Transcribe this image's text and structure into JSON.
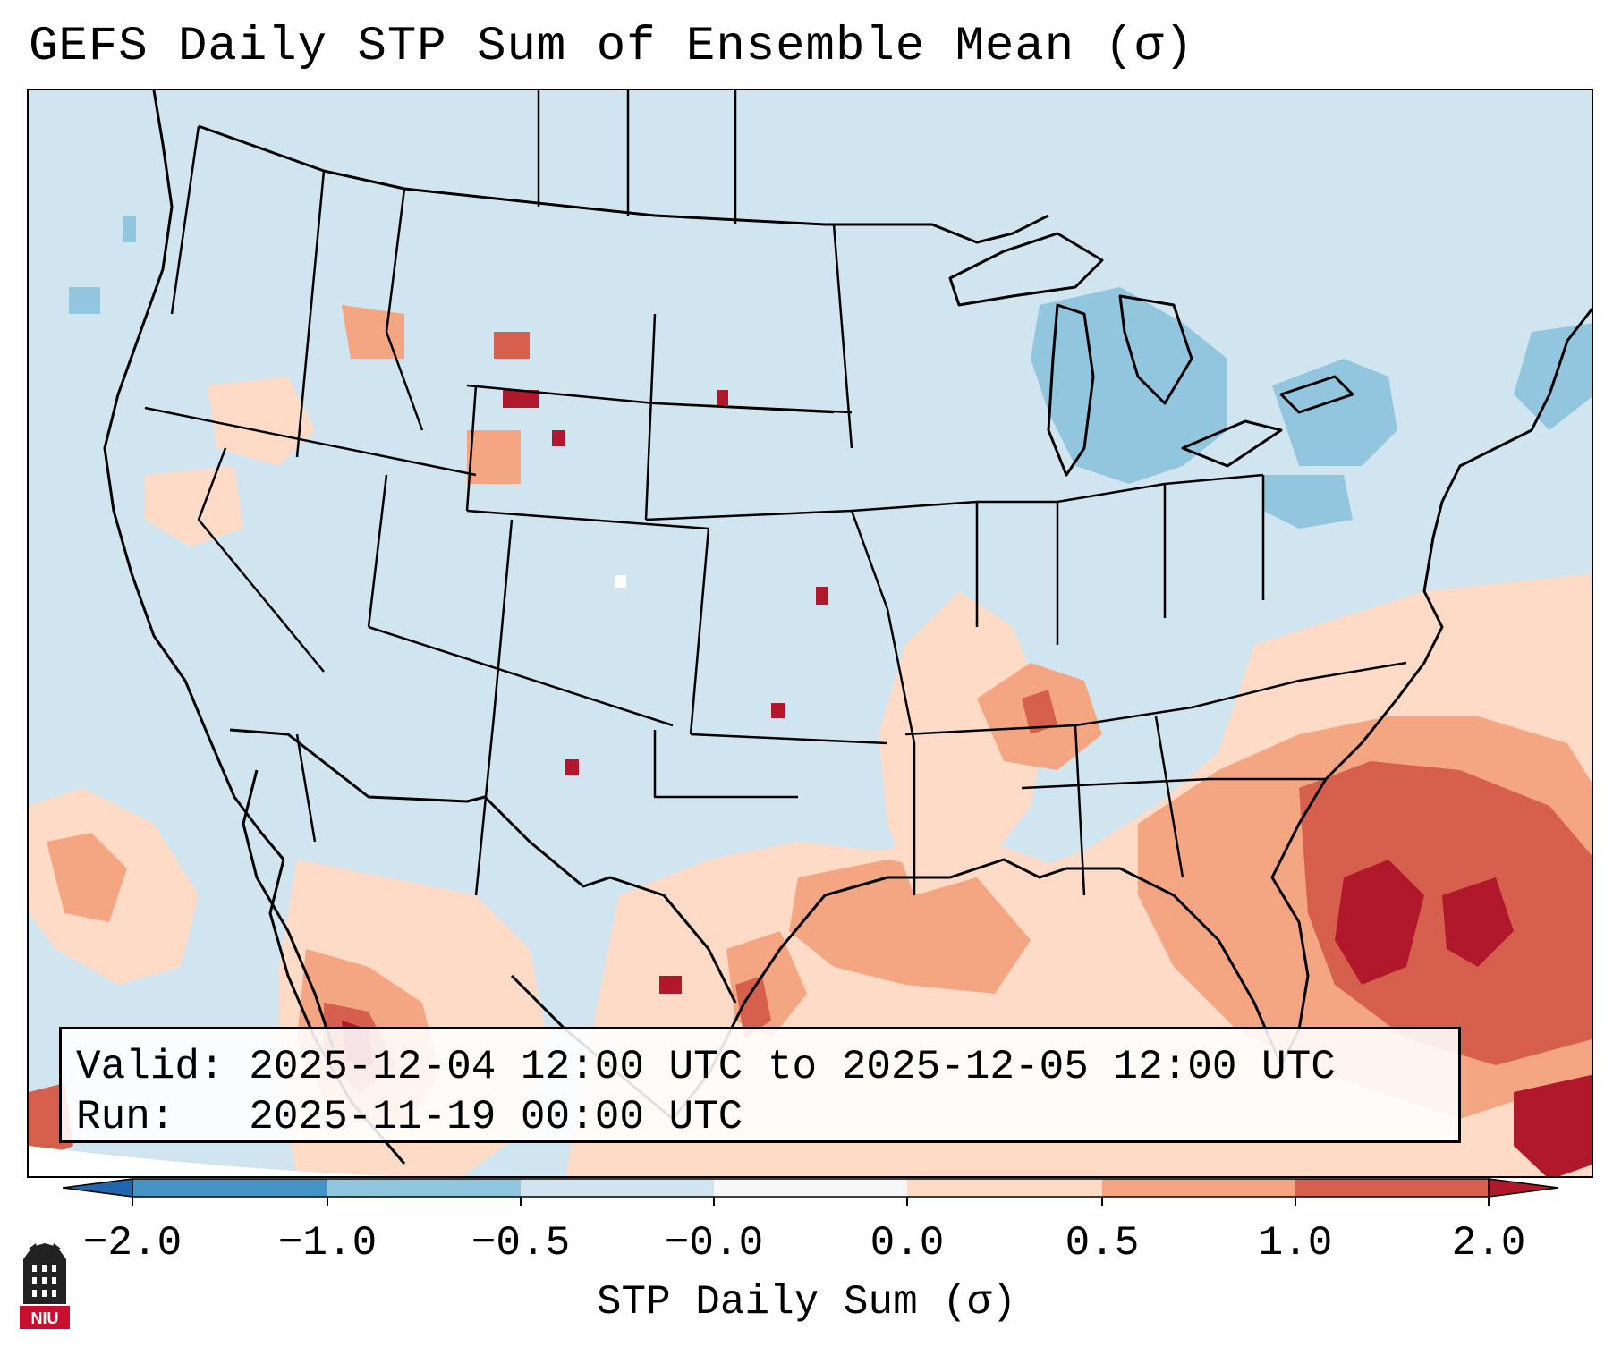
{
  "title": "GEFS Daily STP Sum of Ensemble Mean (σ)",
  "info": {
    "valid_label": "Valid:",
    "valid_value": "2025-12-04 12:00 UTC to 2025-12-05 12:00 UTC",
    "run_label": "Run:",
    "run_value": "2025-11-19 00:00 UTC"
  },
  "colorbar": {
    "label": "STP Daily Sum (σ)",
    "ticks": [
      "−2.0",
      "−1.0",
      "−0.5",
      "−0.0",
      "0.0",
      "0.5",
      "1.0",
      "2.0"
    ],
    "colors": [
      "#4393c3",
      "#92c5de",
      "#d1e5f0",
      "#f7f7f7",
      "#fddbc7",
      "#f4a582",
      "#d6604d"
    ],
    "extend_low_color": "#2166ac",
    "extend_high_color": "#b2182b"
  },
  "map": {
    "background_color": "#d1e5f0",
    "region": "Contiguous United States, northern Mexico, Gulf of Mexico, western Atlantic",
    "legend_colors": {
      "light_red": "#fddbc7",
      "medium_red": "#f4a582",
      "red": "#d6604d",
      "dark_red": "#b2182b",
      "light_blue": "#92c5de"
    }
  },
  "logo": {
    "text": "NIU",
    "icon": "niu-logo-icon",
    "color": "#c8102e"
  }
}
